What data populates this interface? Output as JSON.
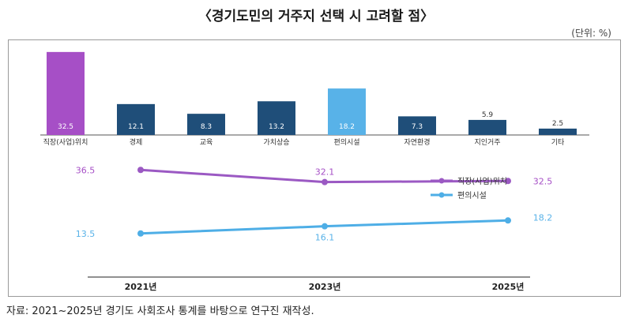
{
  "title": "〈경기도민의 거주지 선택 시 고려할 점〉",
  "unit": "(단위: %)",
  "source": "자료: 2021~2025년 경기도 사회조사 통계를 바탕으로 연구진 재작성.",
  "colors": {
    "navy": "#1f4e79",
    "purple": "#a64fc6",
    "lightblue": "#58b2e8",
    "purpleLine": "#9b59c3",
    "blueLine": "#4eaee6"
  },
  "chart_data": [
    {
      "type": "bar",
      "title": "",
      "categories": [
        "직장(사업)위치",
        "경제",
        "교육",
        "가치상승",
        "편의시설",
        "자연환경",
        "지인거주",
        "기타"
      ],
      "values": [
        32.5,
        12.1,
        8.3,
        13.2,
        18.2,
        7.3,
        5.9,
        2.5
      ],
      "value_labels": [
        "32.5",
        "12.1",
        "8.3",
        "13.2",
        "18.2",
        "7.3",
        "5.9",
        "2.5"
      ],
      "ylim": [
        0,
        34
      ],
      "highlight": {
        "직장(사업)위치": "purple",
        "편의시설": "lightblue"
      }
    },
    {
      "type": "line",
      "categories": [
        "2021년",
        "2023년",
        "2025년"
      ],
      "series": [
        {
          "name": "직장(사업)위치",
          "values": [
            36.5,
            32.1,
            32.5
          ],
          "labels": [
            "36.5",
            "32.1",
            "32.5"
          ]
        },
        {
          "name": "편의시설",
          "values": [
            13.5,
            16.1,
            18.2
          ],
          "labels": [
            "13.5",
            "16.1",
            "18.2"
          ]
        }
      ],
      "ylim": [
        0,
        40
      ],
      "legend": "top-right"
    }
  ]
}
